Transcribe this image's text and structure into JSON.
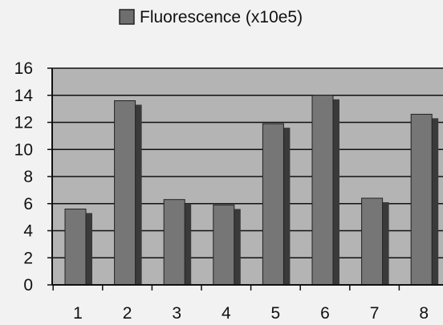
{
  "chart_data": {
    "type": "bar",
    "categories": [
      "1",
      "2",
      "3",
      "4",
      "5",
      "6",
      "7",
      "8"
    ],
    "series": [
      {
        "name": "Fluorescence (x10e5)",
        "values": [
          5.6,
          13.6,
          6.3,
          5.9,
          11.9,
          14.0,
          6.4,
          12.6
        ]
      }
    ],
    "y_ticks": [
      "0",
      "2",
      "4",
      "6",
      "8",
      "10",
      "12",
      "14",
      "16"
    ],
    "ylim": [
      0,
      16
    ],
    "grid": true,
    "legend_position": "top-center",
    "colors": {
      "plot_background": "#b4b4b4",
      "bar_face": "#767676",
      "bar_shadow": "#3a3a3a",
      "legend_swatch": "#6e6e6e"
    }
  }
}
